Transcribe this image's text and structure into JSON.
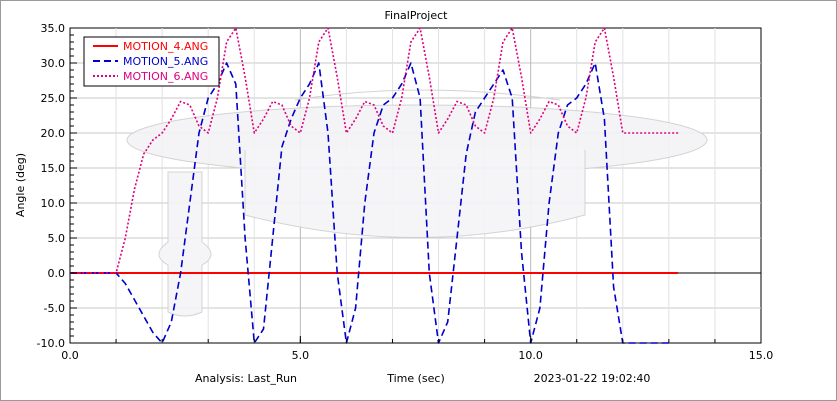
{
  "chart_data": {
    "type": "line",
    "title": "FinalProject",
    "xlabel": "Time (sec)",
    "ylabel": "Angle (deg)",
    "xlim": [
      0.0,
      15.0
    ],
    "ylim": [
      -10.0,
      35.0
    ],
    "x_ticks": [
      "0.0",
      "5.0",
      "10.0",
      "15.0"
    ],
    "y_ticks": [
      "-10.0",
      "-5.0",
      "0.0",
      "5.0",
      "10.0",
      "15.0",
      "20.0",
      "25.0",
      "30.0",
      "35.0"
    ],
    "grid": true,
    "legend_position": "top-left",
    "series": [
      {
        "name": "MOTION_4.ANG",
        "color": "#ff0000",
        "style": "solid",
        "x": [
          0.0,
          2.0,
          4.0,
          6.0,
          8.0,
          10.0,
          12.0,
          13.2
        ],
        "y": [
          0,
          0,
          0,
          0,
          0,
          0,
          0,
          0
        ]
      },
      {
        "name": "MOTION_5.ANG",
        "color": "#0000cc",
        "style": "dashed",
        "x": [
          0.0,
          1.0,
          1.2,
          1.5,
          1.8,
          2.0,
          2.2,
          2.4,
          2.6,
          2.8,
          3.0,
          3.2,
          3.4,
          3.6,
          3.8,
          4.0,
          4.2,
          4.4,
          4.6,
          4.8,
          5.0,
          5.2,
          5.4,
          5.6,
          5.8,
          6.0,
          6.2,
          6.4,
          6.6,
          6.8,
          7.0,
          7.2,
          7.4,
          7.6,
          7.8,
          8.0,
          8.2,
          8.4,
          8.6,
          8.8,
          9.0,
          9.2,
          9.4,
          9.6,
          9.8,
          10.0,
          10.2,
          10.4,
          10.6,
          10.8,
          11.0,
          11.2,
          11.4,
          11.6,
          11.8,
          12.0,
          12.4,
          13.0
        ],
        "y": [
          0.0,
          0.0,
          -1.5,
          -5.0,
          -8.5,
          -10.0,
          -7.0,
          0.0,
          10.0,
          20.0,
          25.0,
          27.0,
          30.0,
          27.0,
          5.0,
          -10.0,
          -8.0,
          5.0,
          18.0,
          22.0,
          25.0,
          27.0,
          30.0,
          20.0,
          0.0,
          -10.0,
          -5.0,
          10.0,
          20.0,
          24.0,
          25.0,
          27.0,
          30.0,
          25.0,
          0.0,
          -10.0,
          -7.0,
          5.0,
          17.0,
          23.0,
          25.0,
          27.0,
          29.0,
          25.0,
          3.0,
          -10.0,
          -5.0,
          10.0,
          20.0,
          24.0,
          25.0,
          27.0,
          30.0,
          22.0,
          -2.0,
          -10.0,
          -10.0,
          -10.0
        ]
      },
      {
        "name": "MOTION_6.ANG",
        "color": "#e0007f",
        "style": "dotted",
        "x": [
          0.0,
          1.0,
          1.2,
          1.4,
          1.6,
          1.8,
          2.0,
          2.2,
          2.4,
          2.6,
          2.8,
          3.0,
          3.2,
          3.4,
          3.6,
          3.8,
          4.0,
          4.2,
          4.4,
          4.6,
          4.8,
          5.0,
          5.2,
          5.4,
          5.6,
          5.8,
          6.0,
          6.2,
          6.4,
          6.6,
          6.8,
          7.0,
          7.2,
          7.4,
          7.6,
          7.8,
          8.0,
          8.2,
          8.4,
          8.6,
          8.8,
          9.0,
          9.2,
          9.4,
          9.6,
          9.8,
          10.0,
          10.2,
          10.4,
          10.6,
          10.8,
          11.0,
          11.2,
          11.4,
          11.6,
          11.8,
          12.0,
          12.4,
          13.2
        ],
        "y": [
          0.0,
          0.0,
          5.0,
          12.0,
          17.0,
          19.0,
          20.0,
          22.0,
          24.5,
          24.0,
          21.0,
          20.0,
          25.0,
          33.0,
          35.0,
          28.0,
          20.0,
          22.0,
          24.5,
          24.0,
          21.0,
          20.0,
          25.0,
          33.0,
          35.0,
          28.0,
          20.0,
          22.0,
          24.5,
          24.0,
          21.0,
          20.0,
          25.0,
          33.0,
          35.0,
          28.0,
          20.0,
          22.0,
          24.5,
          24.0,
          21.0,
          20.0,
          25.0,
          33.0,
          35.0,
          28.0,
          20.0,
          22.0,
          24.5,
          24.0,
          21.0,
          20.0,
          25.0,
          33.0,
          35.0,
          28.0,
          20.0,
          20.0,
          20.0
        ]
      }
    ]
  },
  "footer": {
    "analysis": "Analysis:  Last_Run",
    "timestamp": "2023-01-22 19:02:40"
  }
}
